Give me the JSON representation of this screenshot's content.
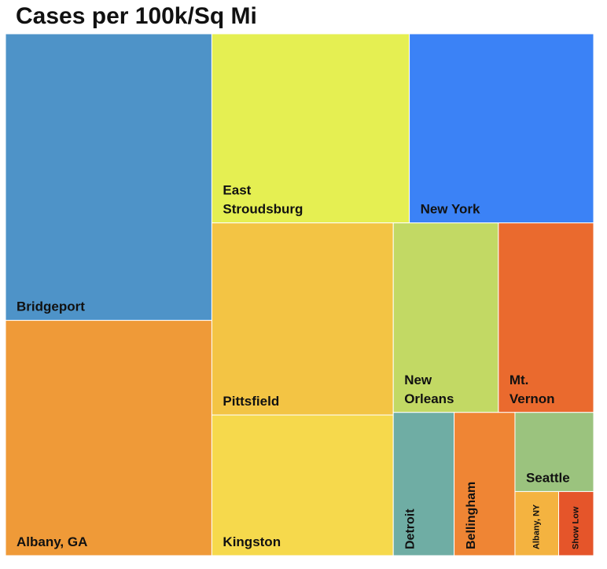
{
  "chart_data": {
    "type": "treemap",
    "title": "Cases per 100k/Sq Mi",
    "categories": [
      "Bridgeport",
      "Albany, GA",
      "East Stroudsburg",
      "New York",
      "Pittsfield",
      "Kingston",
      "New Orleans",
      "Mt. Vernon",
      "Detroit",
      "Bellingham",
      "Seattle",
      "Albany, NY",
      "Show Low"
    ],
    "values": [
      95,
      78,
      60,
      56,
      56,
      41,
      32,
      29,
      14,
      14,
      10,
      4.5,
      3.6
    ],
    "colors": [
      "#4e93c8",
      "#ef9a38",
      "#e5ef52",
      "#3b82f6",
      "#f3c444",
      "#f6d94c",
      "#c2d964",
      "#ea6a2e",
      "#6fada4",
      "#ef8534",
      "#9bc37e",
      "#f4b340",
      "#e5552a"
    ]
  }
}
